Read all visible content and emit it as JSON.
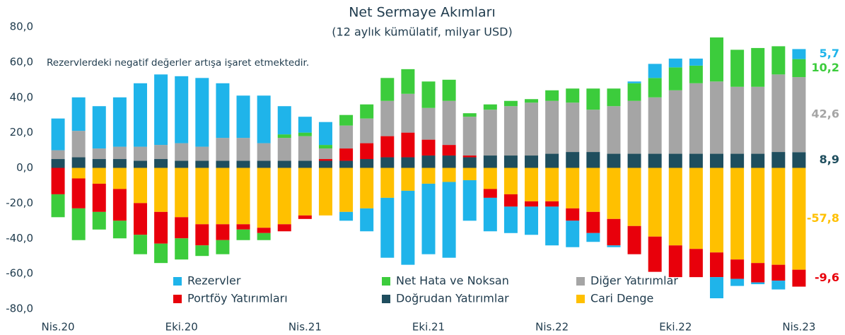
{
  "chart_data": {
    "type": "stacked_bar",
    "title": "Net Sermaye Akımları",
    "subtitle": "(12 aylık kümülatif, milyar USD)",
    "annotation": "Rezervlerdeki negatif değerler artışa işaret etmektedir.",
    "categories": [
      "Nis.20",
      null,
      null,
      null,
      null,
      null,
      "Eki.20",
      null,
      null,
      null,
      null,
      null,
      "Nis.21",
      null,
      null,
      null,
      null,
      null,
      "Eki.21",
      null,
      null,
      null,
      null,
      null,
      "Nis.22",
      null,
      null,
      null,
      null,
      null,
      "Eki.22",
      null,
      null,
      null,
      null,
      null,
      "Nis.23"
    ],
    "series": [
      {
        "name": "Rezervler",
        "color": "#1fb4ea",
        "values": [
          18,
          19,
          24,
          28,
          36,
          40,
          38,
          39,
          31,
          24,
          27,
          16,
          9,
          13,
          -5,
          -13,
          -34,
          -42,
          -40,
          -43,
          -23,
          -19,
          -15,
          -16,
          -22,
          -15,
          -5,
          -1,
          1,
          8,
          5,
          4,
          -12,
          -4,
          -1,
          -5,
          5.7
        ],
        "value_labels": [
          null,
          null,
          null,
          null,
          null,
          null,
          null,
          null,
          null,
          null,
          null,
          null,
          null,
          null,
          null,
          null,
          null,
          null,
          null,
          null,
          null,
          null,
          null,
          null,
          null,
          null,
          null,
          null,
          null,
          null,
          null,
          null,
          null,
          null,
          null,
          null,
          "5,7"
        ]
      },
      {
        "name": "Net Hata ve Noksan",
        "color": "#3ccc3c",
        "values": [
          -13,
          -18,
          -10,
          -10,
          -11,
          -11,
          -12,
          -6,
          -8,
          -6,
          -4,
          2,
          2,
          2,
          6,
          8,
          13,
          14,
          15,
          12,
          2,
          3,
          3,
          2,
          6,
          8,
          12,
          10,
          10,
          11,
          13,
          10,
          25,
          21,
          22,
          16,
          10.2
        ],
        "value_labels": [
          null,
          null,
          null,
          null,
          null,
          null,
          null,
          null,
          null,
          null,
          null,
          null,
          null,
          null,
          null,
          null,
          null,
          null,
          null,
          null,
          null,
          null,
          null,
          null,
          null,
          null,
          null,
          null,
          null,
          null,
          null,
          null,
          null,
          null,
          null,
          null,
          "10,2"
        ]
      },
      {
        "name": "Diğer Yatırımlar",
        "color": "#a5a5a5",
        "values": [
          5,
          15,
          6,
          7,
          8,
          8,
          10,
          8,
          13,
          13,
          10,
          13,
          14,
          6,
          13,
          14,
          20,
          22,
          18,
          25,
          22,
          26,
          28,
          30,
          30,
          28,
          24,
          27,
          30,
          32,
          36,
          40,
          41,
          38,
          38,
          44,
          42.6
        ],
        "value_labels": [
          null,
          null,
          null,
          null,
          null,
          null,
          null,
          null,
          null,
          null,
          null,
          null,
          null,
          null,
          null,
          null,
          null,
          null,
          null,
          null,
          null,
          null,
          null,
          null,
          null,
          null,
          null,
          null,
          null,
          null,
          null,
          null,
          null,
          null,
          null,
          null,
          "42,6"
        ]
      },
      {
        "name": "Portföy Yatırımları",
        "color": "#e8000b",
        "values": [
          -15,
          -17,
          -16,
          -18,
          -18,
          -18,
          -12,
          -12,
          -9,
          -3,
          -3,
          -4,
          -2,
          1,
          7,
          9,
          12,
          14,
          9,
          6,
          1,
          -5,
          -7,
          -3,
          -3,
          -7,
          -12,
          -15,
          -16,
          -20,
          -18,
          -16,
          -14,
          -11,
          -11,
          -9,
          -9.6
        ],
        "value_labels": [
          null,
          null,
          null,
          null,
          null,
          null,
          null,
          null,
          null,
          null,
          null,
          null,
          null,
          null,
          null,
          null,
          null,
          null,
          null,
          null,
          null,
          null,
          null,
          null,
          null,
          null,
          null,
          null,
          null,
          null,
          null,
          null,
          null,
          null,
          null,
          null,
          "-9,6"
        ]
      },
      {
        "name": "Doğrudan Yatırımlar",
        "color": "#1f4e5e",
        "values": [
          5,
          6,
          5,
          5,
          4,
          5,
          4,
          4,
          4,
          4,
          4,
          4,
          4,
          4,
          4,
          5,
          6,
          6,
          7,
          7,
          6,
          7,
          7,
          7,
          8,
          9,
          9,
          8,
          8,
          8,
          8,
          8,
          8,
          8,
          8,
          9,
          8.9
        ],
        "value_labels": [
          null,
          null,
          null,
          null,
          null,
          null,
          null,
          null,
          null,
          null,
          null,
          null,
          null,
          null,
          null,
          null,
          null,
          null,
          null,
          null,
          null,
          null,
          null,
          null,
          null,
          null,
          null,
          null,
          null,
          null,
          null,
          null,
          null,
          null,
          null,
          null,
          "8,9"
        ]
      },
      {
        "name": "Cari Denge",
        "color": "#ffc000",
        "values": [
          0,
          -6,
          -9,
          -12,
          -20,
          -25,
          -28,
          -32,
          -32,
          -32,
          -34,
          -32,
          -27,
          -27,
          -25,
          -23,
          -17,
          -13,
          -9,
          -8,
          -7,
          -12,
          -15,
          -19,
          -19,
          -23,
          -25,
          -29,
          -33,
          -39,
          -44,
          -46,
          -48,
          -52,
          -54,
          -55,
          -57.8
        ],
        "value_labels": [
          null,
          null,
          null,
          null,
          null,
          null,
          null,
          null,
          null,
          null,
          null,
          null,
          null,
          null,
          null,
          null,
          null,
          null,
          null,
          null,
          null,
          null,
          null,
          null,
          null,
          null,
          null,
          null,
          null,
          null,
          null,
          null,
          null,
          null,
          null,
          null,
          "-57,8"
        ]
      }
    ],
    "ylim": [
      -80,
      80
    ],
    "yticks": [
      {
        "value": 80,
        "label": "80,0"
      },
      {
        "value": 60,
        "label": "60,0"
      },
      {
        "value": 40,
        "label": "40,0"
      },
      {
        "value": 20,
        "label": "20,0"
      },
      {
        "value": 0,
        "label": "0,0"
      },
      {
        "value": -20,
        "label": "-20,0"
      },
      {
        "value": -40,
        "label": "-40,0"
      },
      {
        "value": -60,
        "label": "-60,0"
      },
      {
        "value": -80,
        "label": "-80,0"
      }
    ],
    "grid": false
  }
}
